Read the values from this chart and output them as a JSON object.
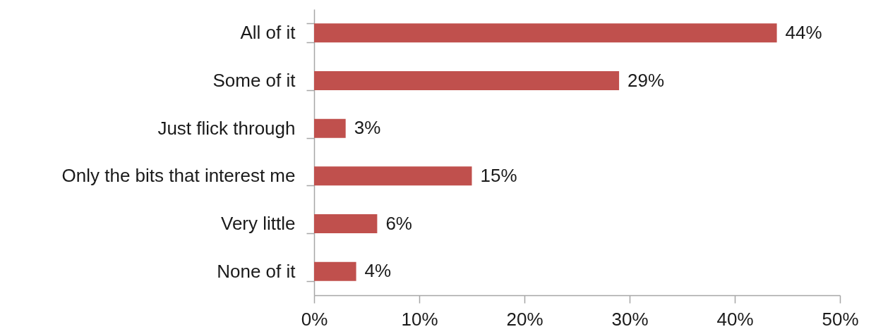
{
  "chart_data": {
    "type": "bar",
    "orientation": "horizontal",
    "categories": [
      "All of it",
      "Some of it",
      "Just flick through",
      "Only the bits that interest me",
      "Very little",
      "None of it"
    ],
    "values": [
      44,
      29,
      3,
      15,
      6,
      4
    ],
    "color": "#c0504d",
    "value_labels": [
      "44%",
      "29%",
      "3%",
      "15%",
      "6%",
      "4%"
    ],
    "xlim": [
      0,
      50
    ],
    "xticks": [
      {
        "value": 0,
        "label": "0%"
      },
      {
        "value": 10,
        "label": "10%"
      },
      {
        "value": 20,
        "label": "20%"
      },
      {
        "value": 30,
        "label": "30%"
      },
      {
        "value": 40,
        "label": "40%"
      },
      {
        "value": 50,
        "label": "50%"
      }
    ]
  }
}
